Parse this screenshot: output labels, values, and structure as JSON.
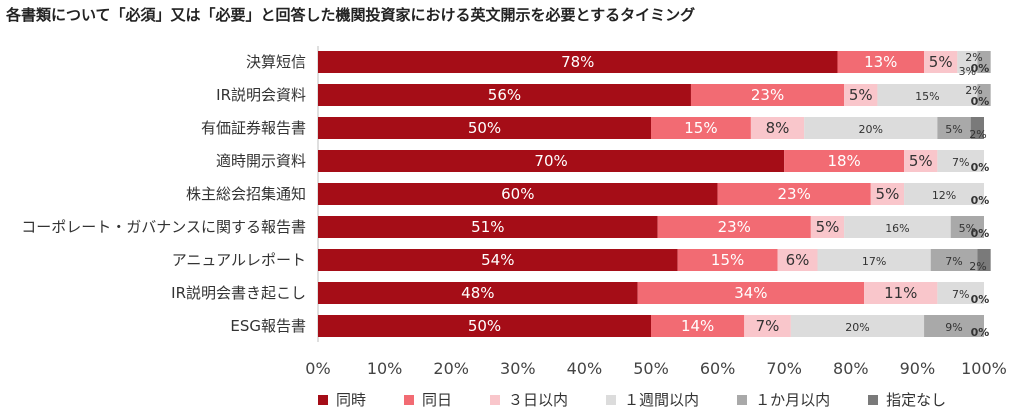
{
  "chart_data": {
    "type": "bar",
    "orientation": "horizontal",
    "stacked": true,
    "title": "各書類について「必須」又は「必要」と回答した機関投資家における英文開示を必要とするタイミング",
    "categories": [
      "決算短信",
      "IR説明会資料",
      "有価証券報告書",
      "適時開示資料",
      "株主総会招集通知",
      "コーポレート・ガバナンスに関する報告書",
      "アニュアルレポート",
      "IR説明会書き起こし",
      "ESG報告書"
    ],
    "series": [
      {
        "name": "同時",
        "color": "#a50d17",
        "values": [
          78,
          56,
          50,
          70,
          60,
          51,
          54,
          48,
          50
        ],
        "labels": [
          "78%",
          "56%",
          "50%",
          "70%",
          "60%",
          "51%",
          "54%",
          "48%",
          "50%"
        ]
      },
      {
        "name": "同日",
        "color": "#f26b73",
        "values": [
          13,
          23,
          15,
          18,
          23,
          23,
          15,
          34,
          14
        ],
        "labels": [
          "13%",
          "23%",
          "15%",
          "18%",
          "23%",
          "23%",
          "15%",
          "34%",
          "14%"
        ]
      },
      {
        "name": "３日以内",
        "color": "#f9c6cb",
        "values": [
          5,
          5,
          8,
          5,
          5,
          5,
          6,
          11,
          7
        ],
        "labels": [
          "5%",
          "5%",
          "8%",
          "5%",
          "5%",
          "5%",
          "6%",
          "11%",
          "7%"
        ]
      },
      {
        "name": "１週間以内",
        "color": "#dcdcdc",
        "values": [
          3,
          15,
          20,
          7,
          12,
          16,
          17,
          7,
          20
        ],
        "labels": [
          "3%",
          "15%",
          "20%",
          "7%",
          "12%",
          "16%",
          "17%",
          "7%",
          "20%"
        ]
      },
      {
        "name": "１か月以内",
        "color": "#a9a9a9",
        "values": [
          2,
          2,
          5,
          0,
          0,
          5,
          7,
          0,
          9
        ],
        "labels": [
          "2%",
          "2%",
          "5%",
          "0%",
          "0%",
          "5%",
          "7%",
          "0%",
          "9%"
        ]
      },
      {
        "name": "指定なし",
        "color": "#7a7a7a",
        "values": [
          0,
          0,
          2,
          0,
          0,
          0,
          2,
          0,
          0
        ],
        "labels": [
          "0%",
          "0%",
          "2%",
          "0%",
          "0%",
          "0%",
          "2%",
          "0%",
          "0%"
        ]
      }
    ],
    "xlim": [
      0,
      100
    ],
    "xticks": [
      "0%",
      "10%",
      "20%",
      "30%",
      "40%",
      "50%",
      "60%",
      "70%",
      "80%",
      "90%",
      "100%"
    ],
    "legend_position": "bottom"
  }
}
